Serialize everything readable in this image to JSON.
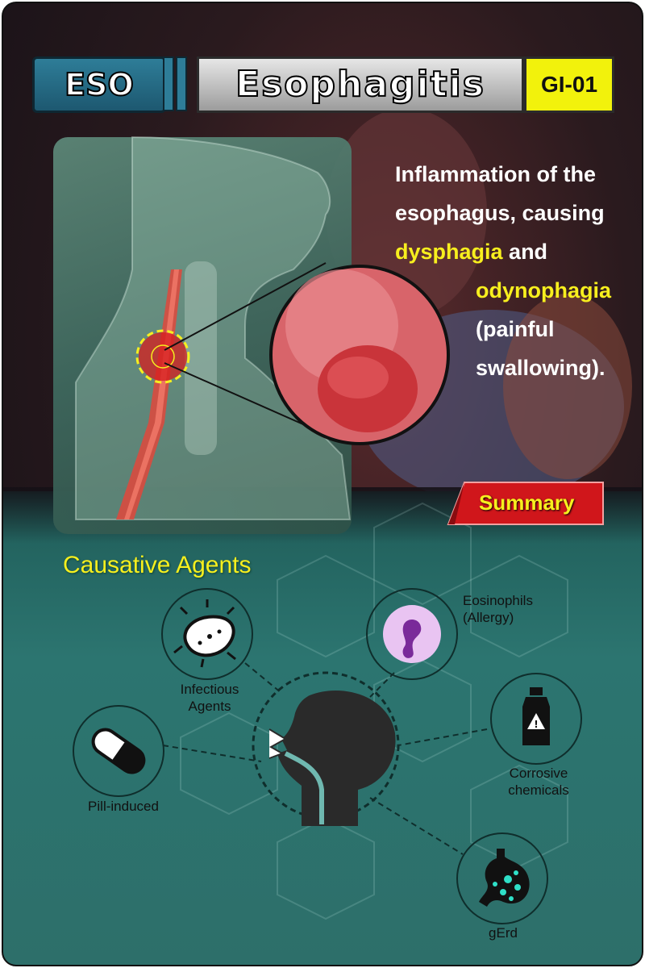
{
  "header": {
    "abbr": "ESO",
    "title": "Esophagitis",
    "code": "GI-01"
  },
  "description": {
    "line1": "Inflammation of the",
    "line2": "esophagus, causing",
    "term1": "dysphagia",
    "line3_rest": " and",
    "term2": "odynophagia",
    "line5": "(painful",
    "line6": "swallowing)."
  },
  "summary_label": "Summary",
  "section_heading": "Causative Agents",
  "agents": [
    {
      "label_lines": [
        "Infectious",
        "Agents"
      ],
      "icon": "virus-icon"
    },
    {
      "label_lines": [
        "Eosinophils",
        "(Allergy)"
      ],
      "icon": "eosinophil-icon"
    },
    {
      "label_lines": [
        "Pill-induced"
      ],
      "icon": "pill-icon"
    },
    {
      "label_lines": [
        "Corrosive",
        "chemicals"
      ],
      "icon": "chemical-bottle-icon"
    },
    {
      "label_lines": [
        "gErd"
      ],
      "icon": "stomach-icon"
    }
  ],
  "colors": {
    "accent_yellow": "#f7ef1e",
    "teal_background": "#2c7570",
    "summary_red": "#d0161b",
    "header_blue": "#2e7d98"
  }
}
